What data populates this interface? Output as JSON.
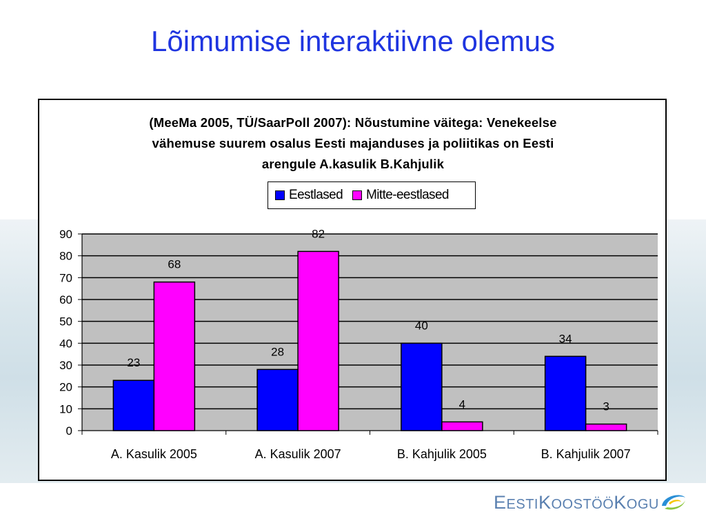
{
  "slide": {
    "title": "Lõimumise interaktiivne olemus"
  },
  "chart_data": {
    "type": "bar",
    "title": "(MeeMa 2005, TÜ/SaarPoll 2007): Nõustumine väitega: Venekeelse vähemuse suurem osalus Eesti majanduses ja poliitikas on Eesti arengule A.kasulik B.Kahjulik",
    "title_lines": [
      "(MeeMa 2005, TÜ/SaarPoll 2007): Nõustumine väitega: Venekeelse",
      "vähemuse suurem osalus Eesti majanduses ja poliitikas on Eesti",
      "arengule A.kasulik B.Kahjulik"
    ],
    "categories": [
      "A. Kasulik 2005",
      "A. Kasulik 2007",
      "B. Kahjulik 2005",
      "B. Kahjulik 2007"
    ],
    "series": [
      {
        "name": "Eestlased",
        "values": [
          23,
          28,
          40,
          34
        ],
        "color": "#0000ff"
      },
      {
        "name": "Mitte-eestlased",
        "values": [
          68,
          82,
          4,
          3
        ],
        "color": "#ff00ff"
      }
    ],
    "ylim": [
      0,
      90
    ],
    "yticks": [
      0,
      10,
      20,
      30,
      40,
      50,
      60,
      70,
      80,
      90
    ],
    "grid": true,
    "plot_background": "#c0c0c0",
    "legend_position": "top-center",
    "xlabel": "",
    "ylabel": ""
  },
  "logo": {
    "text_parts": [
      "E",
      "ESTI",
      "K",
      "OOSTÖÖ",
      "K",
      "OGU"
    ],
    "text": "EestiKoostööKogu"
  }
}
